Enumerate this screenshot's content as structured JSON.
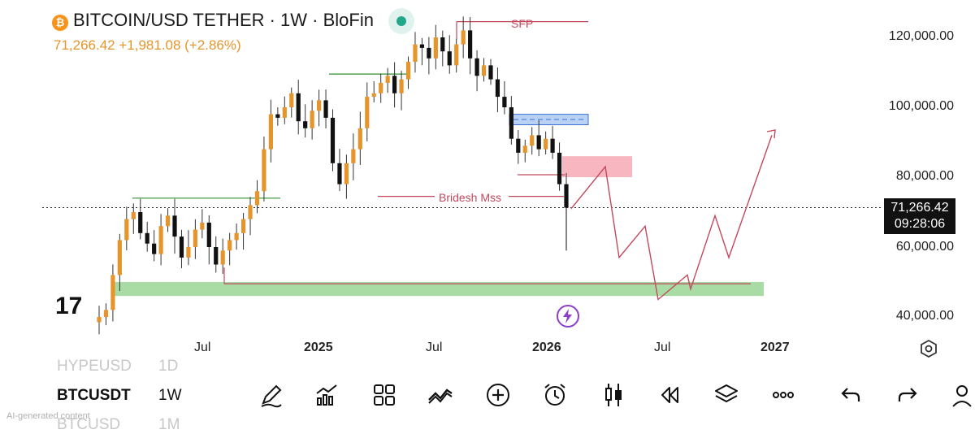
{
  "header": {
    "symbol_title": "BITCOIN/USD TETHER · 1W · BloFin",
    "quote": "71,266.42  +1,981.08 (+2.86%)",
    "badge_letter": "₿"
  },
  "price_axis": {
    "labels": [
      "120,000.00",
      "100,000.00",
      "80,000.00",
      "60,000.00",
      "40,000.00"
    ],
    "current_price": "71,266.42",
    "countdown": "09:28:06"
  },
  "time_axis": {
    "labels": [
      {
        "text": "Jul",
        "bold": false
      },
      {
        "text": "2025",
        "bold": true
      },
      {
        "text": "Jul",
        "bold": false
      },
      {
        "text": "2026",
        "bold": true
      },
      {
        "text": "Jul",
        "bold": false
      },
      {
        "text": "2027",
        "bold": true
      }
    ]
  },
  "annotations": {
    "sfp": "SFP",
    "mss": "Bridesh Mss"
  },
  "watermark": "17",
  "watchlist": {
    "rows": [
      {
        "symbol": "HYPEUSD",
        "interval": "1D"
      },
      {
        "symbol": "BTCUSDT",
        "interval": "1W"
      },
      {
        "symbol": "BTCUSD",
        "interval": "1M"
      }
    ]
  },
  "toolbar": {
    "icons": [
      "pencil-icon",
      "indicators-icon",
      "grid-icon",
      "trend-icon",
      "add-icon",
      "alarm-icon",
      "candles-icon",
      "replay-icon",
      "layers-icon",
      "more-icon",
      "undo-icon",
      "redo-icon",
      "account-icon"
    ]
  },
  "footer_note": "AI-generated content",
  "colors": {
    "candle": "#e6952c",
    "candle_dark": "#111111",
    "annotation": "#c2495c",
    "green_line": "#2f8f2f",
    "demand_zone": "#a9dba4",
    "supply_zone": "#f7b6c0",
    "blue_zone": "#b9d2f3"
  },
  "chart_data": {
    "type": "candlestick",
    "title": "BITCOIN/USD TETHER · 1W · BloFin",
    "ylim": [
      34000,
      128000
    ],
    "y_ticks": [
      120000,
      100000,
      80000,
      60000,
      40000
    ],
    "current_price": 71266.42,
    "weekly_closes_approx": [
      40000,
      42000,
      52000,
      62000,
      68000,
      70000,
      64000,
      61000,
      58000,
      66000,
      69000,
      63000,
      57000,
      60000,
      65000,
      67000,
      60000,
      55000,
      59000,
      62000,
      64000,
      68000,
      72000,
      76000,
      88000,
      98000,
      97000,
      100000,
      104000,
      96000,
      94000,
      99000,
      102000,
      97000,
      84000,
      78000,
      84000,
      88000,
      94000,
      103000,
      104000,
      107000,
      109000,
      104000,
      108000,
      113000,
      118000,
      117000,
      114000,
      120000,
      116000,
      112000,
      118000,
      122000,
      114000,
      109000,
      112000,
      108000,
      103000,
      100000,
      91000,
      87000,
      89000,
      92000,
      88000,
      91000,
      87000,
      78000,
      71266
    ],
    "levels": [
      {
        "name": "SFP",
        "price": 124500
      },
      {
        "name": "Bridesh Mss",
        "price": 74500
      },
      {
        "name": "range-high",
        "price": 74000
      },
      {
        "name": "range-high-2",
        "price": 109500
      },
      {
        "name": "low-line",
        "price": 49500
      }
    ],
    "zones": [
      {
        "name": "demand",
        "from": 46000,
        "to": 50000
      },
      {
        "name": "supply",
        "from": 80000,
        "to": 86000
      },
      {
        "name": "blue",
        "from": 95000,
        "to": 98000
      }
    ],
    "projection_path": [
      71000,
      83000,
      57000,
      66000,
      45000,
      52000,
      48000,
      69000,
      57000,
      92000
    ]
  }
}
